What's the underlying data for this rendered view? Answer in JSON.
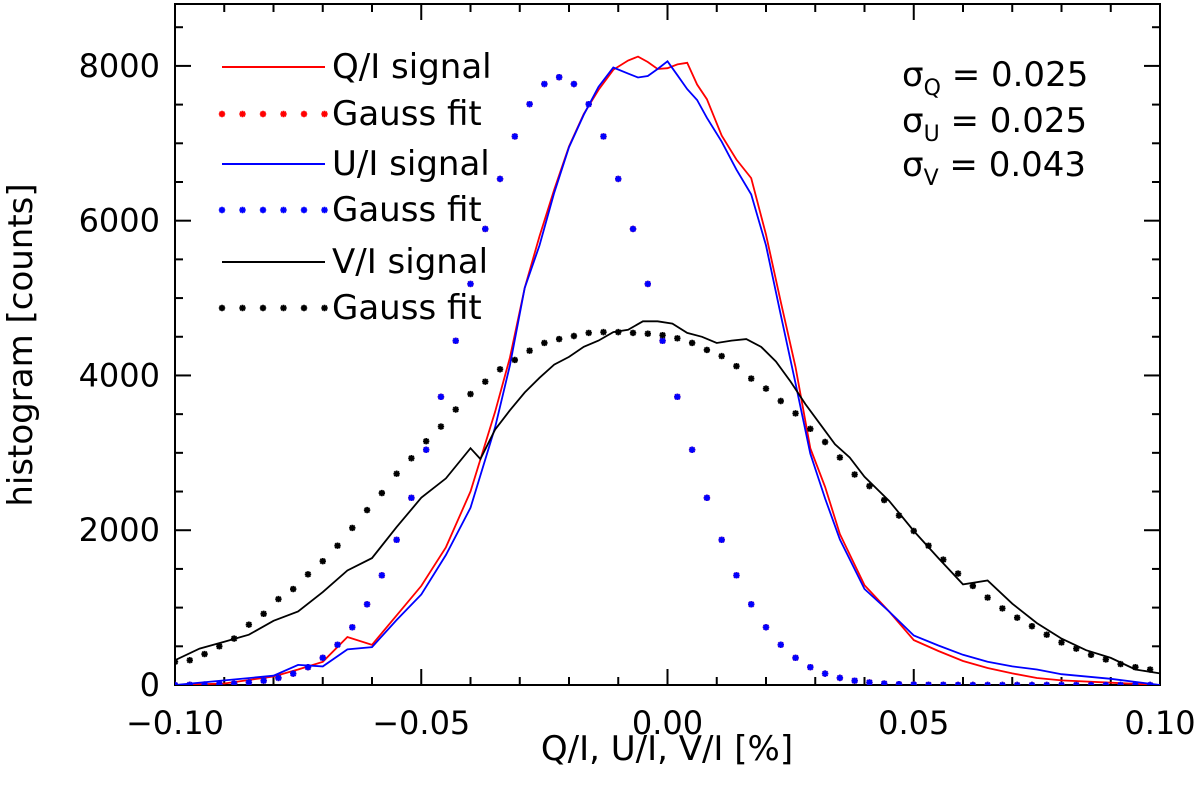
{
  "chart_data": {
    "type": "line",
    "xlabel": "Q/I, U/I, V/I [%]",
    "ylabel": "histogram [counts]",
    "xlim": [
      -0.1,
      0.1
    ],
    "ylim": [
      0,
      8800
    ],
    "xticks": [
      -0.1,
      -0.05,
      0.0,
      0.05,
      0.1
    ],
    "xtick_labels": [
      "−0.10",
      "−0.05",
      "0.00",
      "0.05",
      "0.10"
    ],
    "yticks": [
      0,
      2000,
      4000,
      6000,
      8000
    ],
    "ytick_labels": [
      "0",
      "2000",
      "4000",
      "6000",
      "8000"
    ],
    "grid": false,
    "legend_position": "top-left",
    "series": [
      {
        "name": "Q/I signal",
        "style": "solid",
        "color": "#ff0000",
        "x": [
          -0.1,
          -0.09,
          -0.08,
          -0.075,
          -0.07,
          -0.065,
          -0.06,
          -0.055,
          -0.05,
          -0.045,
          -0.04,
          -0.035,
          -0.032,
          -0.029,
          -0.026,
          -0.023,
          -0.02,
          -0.017,
          -0.014,
          -0.011,
          -0.008,
          -0.006,
          -0.004,
          -0.002,
          0.0,
          0.002,
          0.004,
          0.006,
          0.008,
          0.011,
          0.014,
          0.017,
          0.02,
          0.023,
          0.026,
          0.029,
          0.032,
          0.035,
          0.04,
          0.045,
          0.05,
          0.055,
          0.06,
          0.065,
          0.07,
          0.075,
          0.08,
          0.09,
          0.1
        ],
        "y": [
          0,
          20,
          110,
          200,
          300,
          620,
          520,
          900,
          1280,
          1780,
          2500,
          3530,
          4230,
          5130,
          5800,
          6400,
          6960,
          7380,
          7690,
          7950,
          8070,
          8120,
          8050,
          7960,
          7970,
          8020,
          8040,
          7760,
          7570,
          7100,
          6790,
          6550,
          5820,
          4950,
          4110,
          3060,
          2560,
          1950,
          1290,
          950,
          580,
          440,
          310,
          220,
          150,
          90,
          60,
          30,
          0
        ]
      },
      {
        "name": "Q/I Gauss fit",
        "style": "dotted",
        "color": "#ff0000",
        "x": [
          -0.1,
          -0.097,
          -0.094,
          -0.091,
          -0.088,
          -0.085,
          -0.082,
          -0.079,
          -0.076,
          -0.073,
          -0.07,
          -0.067,
          -0.064,
          -0.061,
          -0.058,
          -0.055,
          -0.052,
          -0.049,
          -0.046,
          -0.043,
          -0.04,
          -0.037,
          -0.034,
          -0.031,
          -0.028,
          -0.025,
          -0.022,
          -0.019,
          -0.016,
          -0.013,
          -0.01,
          -0.007,
          -0.004,
          -0.001,
          0.002,
          0.005,
          0.008,
          0.011,
          0.014,
          0.017,
          0.02,
          0.023,
          0.026,
          0.029,
          0.032,
          0.035,
          0.038,
          0.041,
          0.044,
          0.047,
          0.05,
          0.053,
          0.056,
          0.059,
          0.062,
          0.065,
          0.068,
          0.071,
          0.074,
          0.077,
          0.08,
          0.083,
          0.086,
          0.089,
          0.092,
          0.095,
          0.098
        ],
        "y": [
          0,
          3,
          6,
          11,
          19,
          33,
          56,
          92,
          147,
          230,
          351,
          520,
          746,
          1043,
          1417,
          1876,
          2419,
          3040,
          3724,
          4448,
          5183,
          5893,
          6540,
          7089,
          7506,
          7766,
          7854,
          7766,
          7506,
          7089,
          6540,
          5893,
          5183,
          4448,
          3724,
          3040,
          2419,
          1876,
          1417,
          1043,
          746,
          520,
          351,
          230,
          147,
          92,
          56,
          33,
          19,
          11,
          6,
          3,
          2,
          1,
          0,
          0,
          0,
          0,
          0,
          0,
          0,
          0,
          0,
          0,
          0,
          0,
          0
        ]
      },
      {
        "name": "U/I signal",
        "style": "solid",
        "color": "#0000ff",
        "x": [
          -0.1,
          -0.09,
          -0.08,
          -0.075,
          -0.07,
          -0.065,
          -0.06,
          -0.055,
          -0.05,
          -0.045,
          -0.04,
          -0.035,
          -0.032,
          -0.029,
          -0.026,
          -0.023,
          -0.02,
          -0.017,
          -0.014,
          -0.011,
          -0.008,
          -0.006,
          -0.004,
          -0.002,
          0.0,
          0.002,
          0.004,
          0.006,
          0.008,
          0.011,
          0.014,
          0.017,
          0.02,
          0.023,
          0.026,
          0.029,
          0.032,
          0.035,
          0.04,
          0.045,
          0.05,
          0.055,
          0.06,
          0.065,
          0.07,
          0.075,
          0.08,
          0.09,
          0.1
        ],
        "y": [
          0,
          60,
          120,
          260,
          240,
          460,
          490,
          840,
          1170,
          1680,
          2290,
          3330,
          4130,
          5130,
          5680,
          6360,
          6950,
          7370,
          7730,
          7980,
          7900,
          7850,
          7870,
          7960,
          8060,
          7880,
          7700,
          7560,
          7330,
          7020,
          6660,
          6340,
          5680,
          4780,
          3900,
          2990,
          2410,
          1880,
          1240,
          950,
          640,
          510,
          390,
          300,
          240,
          200,
          140,
          80,
          0
        ]
      },
      {
        "name": "U/I Gauss fit",
        "style": "dotted",
        "color": "#0000ff",
        "x": [
          -0.1,
          -0.097,
          -0.094,
          -0.091,
          -0.088,
          -0.085,
          -0.082,
          -0.079,
          -0.076,
          -0.073,
          -0.07,
          -0.067,
          -0.064,
          -0.061,
          -0.058,
          -0.055,
          -0.052,
          -0.049,
          -0.046,
          -0.043,
          -0.04,
          -0.037,
          -0.034,
          -0.031,
          -0.028,
          -0.025,
          -0.022,
          -0.019,
          -0.016,
          -0.013,
          -0.01,
          -0.007,
          -0.004,
          -0.001,
          0.002,
          0.005,
          0.008,
          0.011,
          0.014,
          0.017,
          0.02,
          0.023,
          0.026,
          0.029,
          0.032,
          0.035,
          0.038,
          0.041,
          0.044,
          0.047,
          0.05,
          0.053,
          0.056,
          0.059,
          0.062,
          0.065,
          0.068,
          0.071,
          0.074,
          0.077,
          0.08,
          0.083,
          0.086,
          0.089,
          0.092,
          0.095,
          0.098
        ],
        "y": [
          0,
          3,
          6,
          11,
          19,
          33,
          56,
          92,
          147,
          230,
          351,
          520,
          746,
          1043,
          1417,
          1876,
          2419,
          3040,
          3724,
          4448,
          5183,
          5893,
          6540,
          7089,
          7506,
          7766,
          7854,
          7766,
          7506,
          7089,
          6540,
          5893,
          5183,
          4448,
          3724,
          3040,
          2419,
          1876,
          1417,
          1043,
          746,
          520,
          351,
          230,
          147,
          92,
          56,
          33,
          19,
          11,
          6,
          3,
          2,
          1,
          0,
          0,
          0,
          0,
          0,
          0,
          0,
          0,
          0,
          0,
          0,
          0,
          0
        ]
      },
      {
        "name": "V/I signal",
        "style": "solid",
        "color": "#000000",
        "x": [
          -0.1,
          -0.095,
          -0.09,
          -0.085,
          -0.08,
          -0.075,
          -0.07,
          -0.065,
          -0.06,
          -0.055,
          -0.05,
          -0.045,
          -0.04,
          -0.038,
          -0.035,
          -0.032,
          -0.029,
          -0.026,
          -0.023,
          -0.02,
          -0.017,
          -0.014,
          -0.011,
          -0.008,
          -0.005,
          -0.002,
          0.001,
          0.004,
          0.007,
          0.01,
          0.013,
          0.016,
          0.019,
          0.022,
          0.025,
          0.028,
          0.031,
          0.034,
          0.037,
          0.04,
          0.045,
          0.05,
          0.055,
          0.06,
          0.065,
          0.07,
          0.075,
          0.08,
          0.085,
          0.09,
          0.095,
          0.1
        ],
        "y": [
          320,
          470,
          560,
          650,
          830,
          950,
          1200,
          1480,
          1640,
          2040,
          2420,
          2670,
          3060,
          2920,
          3300,
          3550,
          3780,
          3970,
          4140,
          4240,
          4370,
          4450,
          4560,
          4590,
          4700,
          4700,
          4670,
          4550,
          4500,
          4420,
          4450,
          4470,
          4370,
          4180,
          3920,
          3630,
          3370,
          3110,
          2940,
          2690,
          2380,
          1990,
          1640,
          1300,
          1350,
          1050,
          800,
          600,
          450,
          350,
          200,
          150
        ]
      },
      {
        "name": "V/I Gauss fit",
        "style": "dotted",
        "color": "#000000",
        "x": [
          -0.1,
          -0.097,
          -0.094,
          -0.091,
          -0.088,
          -0.085,
          -0.082,
          -0.079,
          -0.076,
          -0.073,
          -0.07,
          -0.067,
          -0.064,
          -0.061,
          -0.058,
          -0.055,
          -0.052,
          -0.049,
          -0.046,
          -0.043,
          -0.04,
          -0.037,
          -0.034,
          -0.031,
          -0.028,
          -0.025,
          -0.022,
          -0.019,
          -0.016,
          -0.013,
          -0.01,
          -0.007,
          -0.004,
          -0.001,
          0.002,
          0.005,
          0.008,
          0.011,
          0.014,
          0.017,
          0.02,
          0.023,
          0.026,
          0.029,
          0.032,
          0.035,
          0.038,
          0.041,
          0.044,
          0.047,
          0.05,
          0.053,
          0.056,
          0.059,
          0.062,
          0.065,
          0.068,
          0.071,
          0.074,
          0.077,
          0.08,
          0.083,
          0.086,
          0.089,
          0.092,
          0.095,
          0.098
        ],
        "y": [
          300,
          320,
          400,
          500,
          600,
          780,
          920,
          1110,
          1240,
          1430,
          1600,
          1800,
          2030,
          2260,
          2480,
          2730,
          2930,
          3150,
          3340,
          3560,
          3760,
          3920,
          4080,
          4200,
          4320,
          4420,
          4470,
          4510,
          4550,
          4560,
          4560,
          4550,
          4540,
          4520,
          4480,
          4420,
          4330,
          4250,
          4120,
          3960,
          3830,
          3670,
          3510,
          3310,
          3140,
          2940,
          2720,
          2570,
          2390,
          2190,
          1990,
          1800,
          1620,
          1440,
          1280,
          1130,
          990,
          870,
          760,
          650,
          550,
          470,
          390,
          330,
          270,
          230,
          200
        ]
      }
    ],
    "legend": [
      "Q/I signal",
      "Gauss fit",
      "U/I signal",
      "Gauss fit",
      "V/I signal",
      "Gauss fit"
    ],
    "annotations": [
      {
        "symbol": "σ",
        "sub": "Q",
        "text": " = 0.025"
      },
      {
        "symbol": "σ",
        "sub": "U",
        "text": " = 0.025"
      },
      {
        "symbol": "σ",
        "sub": "V",
        "text": " = 0.043"
      }
    ]
  }
}
